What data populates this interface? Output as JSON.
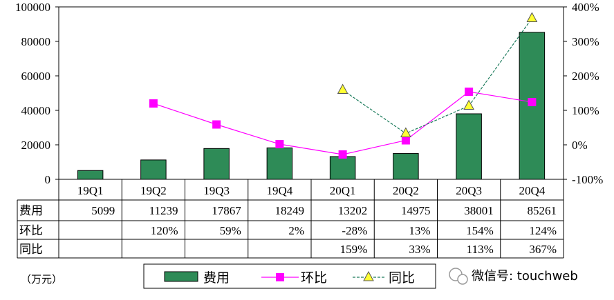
{
  "chart_data": {
    "type": "bar",
    "categories": [
      "19Q1",
      "19Q2",
      "19Q3",
      "19Q4",
      "20Q1",
      "20Q2",
      "20Q3",
      "20Q4"
    ],
    "unit_label": "（万元）",
    "y_left": {
      "min": 0,
      "max": 100000,
      "ticks": [
        "0",
        "20000",
        "40000",
        "60000",
        "80000",
        "100000"
      ]
    },
    "y_right": {
      "min": -100,
      "max": 400,
      "ticks": [
        "-100%",
        "0%",
        "100%",
        "200%",
        "300%",
        "400%"
      ]
    },
    "series": [
      {
        "name": "费用",
        "kind": "bar",
        "axis": "left",
        "color": "#2e8b57",
        "values": [
          5099,
          11239,
          17867,
          18249,
          13202,
          14975,
          38001,
          85261
        ],
        "labels": [
          "5099",
          "11239",
          "17867",
          "18249",
          "13202",
          "14975",
          "38001",
          "85261"
        ]
      },
      {
        "name": "环比",
        "kind": "line",
        "axis": "right",
        "color": "#ff00ff",
        "marker": "square",
        "values": [
          null,
          120,
          59,
          2,
          -28,
          13,
          154,
          124
        ],
        "labels": [
          "",
          "120%",
          "59%",
          "2%",
          "-28%",
          "13%",
          "154%",
          "124%"
        ]
      },
      {
        "name": "同比",
        "kind": "line",
        "axis": "right",
        "color": "#1a7a5a",
        "marker": "triangle",
        "dashed": true,
        "values": [
          null,
          null,
          null,
          null,
          159,
          33,
          113,
          367
        ],
        "labels": [
          "",
          "",
          "",
          "",
          "159%",
          "33%",
          "113%",
          "367%"
        ]
      }
    ],
    "legend": {
      "placement": "bottom"
    }
  },
  "watermark": {
    "text": "微信号: touchweb"
  }
}
